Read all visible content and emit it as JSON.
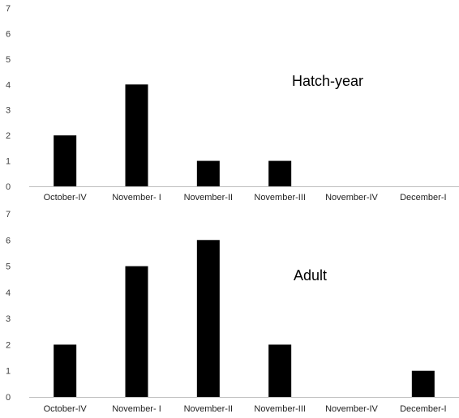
{
  "chart_data": [
    {
      "type": "bar",
      "title": "Hatch-year",
      "categories": [
        "October-IV",
        "November- I",
        "November-II",
        "November-III",
        "November-IV",
        "December-I"
      ],
      "values": [
        2,
        4,
        1,
        1,
        0,
        0
      ],
      "yticks": [
        "0",
        "1",
        "2",
        "3",
        "4",
        "5",
        "6",
        "7"
      ],
      "ylim": [
        0,
        7
      ],
      "grid": false,
      "bar_color": "#000000",
      "axis_color": "#bfbfbf"
    },
    {
      "type": "bar",
      "title": "Adult",
      "categories": [
        "October-IV",
        "November- I",
        "November-II",
        "November-III",
        "November-IV",
        "December-I"
      ],
      "values": [
        2,
        5,
        6,
        2,
        0,
        1
      ],
      "yticks": [
        "0",
        "1",
        "2",
        "3",
        "4",
        "5",
        "6",
        "7"
      ],
      "ylim": [
        0,
        7
      ],
      "grid": false,
      "bar_color": "#000000",
      "axis_color": "#bfbfbf"
    }
  ]
}
